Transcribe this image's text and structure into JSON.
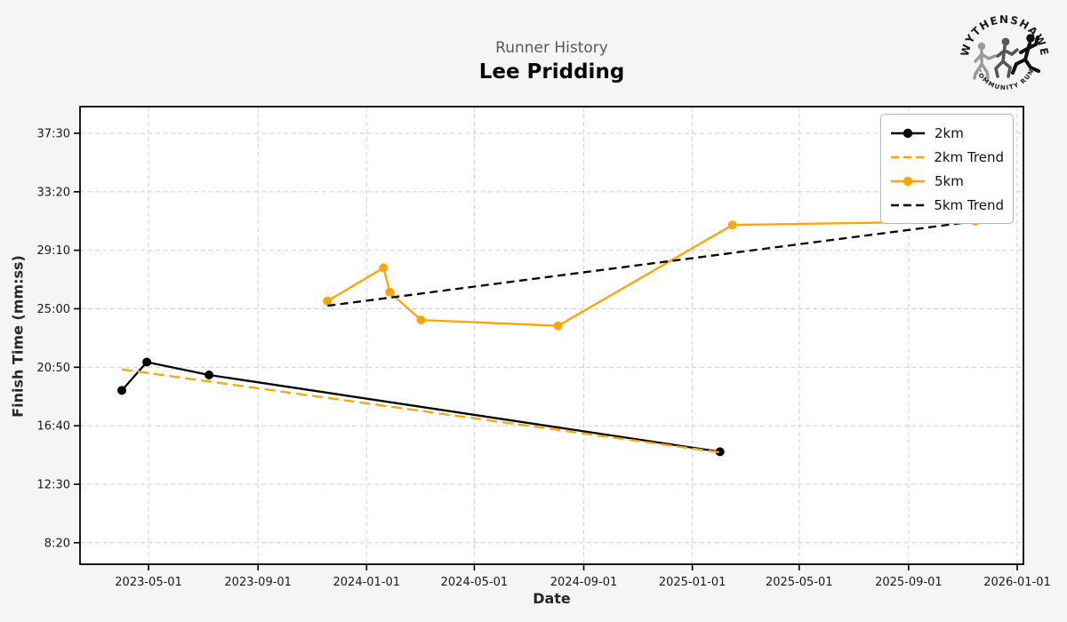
{
  "header": {
    "subtitle": "Runner History",
    "title": "Lee Pridding"
  },
  "logo": {
    "top_text": "WYTHENSHAWE",
    "bottom_text": "COMMUNITY RUN"
  },
  "chart_data": {
    "type": "line",
    "title": "Runner History",
    "subtitle": "Lee Pridding",
    "xlabel": "Date",
    "ylabel": "Finish Time (mm:ss)",
    "grid": true,
    "legend_position": "top-right",
    "xlim": [
      "2023-02-13",
      "2026-01-08"
    ],
    "ylim_seconds": [
      408,
      2364
    ],
    "x_ticks": [
      "2023-05-01",
      "2023-09-01",
      "2024-01-01",
      "2024-05-01",
      "2024-09-01",
      "2025-01-01",
      "2025-05-01",
      "2025-09-01",
      "2026-01-01"
    ],
    "y_ticks": [
      {
        "label": "8:20",
        "seconds": 500
      },
      {
        "label": "12:30",
        "seconds": 750
      },
      {
        "label": "16:40",
        "seconds": 1000
      },
      {
        "label": "20:50",
        "seconds": 1250
      },
      {
        "label": "25:00",
        "seconds": 1500
      },
      {
        "label": "29:10",
        "seconds": 1750
      },
      {
        "label": "33:20",
        "seconds": 2000
      },
      {
        "label": "37:30",
        "seconds": 2250
      }
    ],
    "series": [
      {
        "name": "2km",
        "color": "#000000",
        "style": "solid",
        "markers": true,
        "points": [
          {
            "date": "2023-04-01",
            "time": "19:11"
          },
          {
            "date": "2023-04-29",
            "time": "21:12"
          },
          {
            "date": "2023-07-08",
            "time": "20:17"
          },
          {
            "date": "2025-02-01",
            "time": "14:49"
          }
        ]
      },
      {
        "name": "2km Trend",
        "color": "#FFA500",
        "style": "dashed",
        "markers": false,
        "points": [
          {
            "date": "2023-04-01",
            "time": "20:41"
          },
          {
            "date": "2025-02-01",
            "time": "14:46"
          }
        ]
      },
      {
        "name": "5km",
        "color": "#FFA500",
        "style": "solid",
        "markers": true,
        "points": [
          {
            "date": "2023-11-18",
            "time": "25:33"
          },
          {
            "date": "2024-01-20",
            "time": "27:55"
          },
          {
            "date": "2024-01-27",
            "time": "26:11"
          },
          {
            "date": "2024-03-02",
            "time": "24:12"
          },
          {
            "date": "2024-08-03",
            "time": "23:47"
          },
          {
            "date": "2025-02-15",
            "time": "30:58"
          },
          {
            "date": "2025-11-15",
            "time": "31:15"
          }
        ]
      },
      {
        "name": "5km Trend",
        "color": "#000000",
        "style": "dashed",
        "markers": false,
        "points": [
          {
            "date": "2023-11-18",
            "time": "25:13"
          },
          {
            "date": "2025-11-15",
            "time": "31:14"
          }
        ]
      }
    ],
    "colors": {
      "accent_orange": "#FFA500",
      "series_black": "#000000",
      "grid": "#cfcfcf",
      "plot_bg": "#ffffff",
      "figure_bg": "#f5f5f5",
      "subtitle_gray": "#595959"
    }
  }
}
